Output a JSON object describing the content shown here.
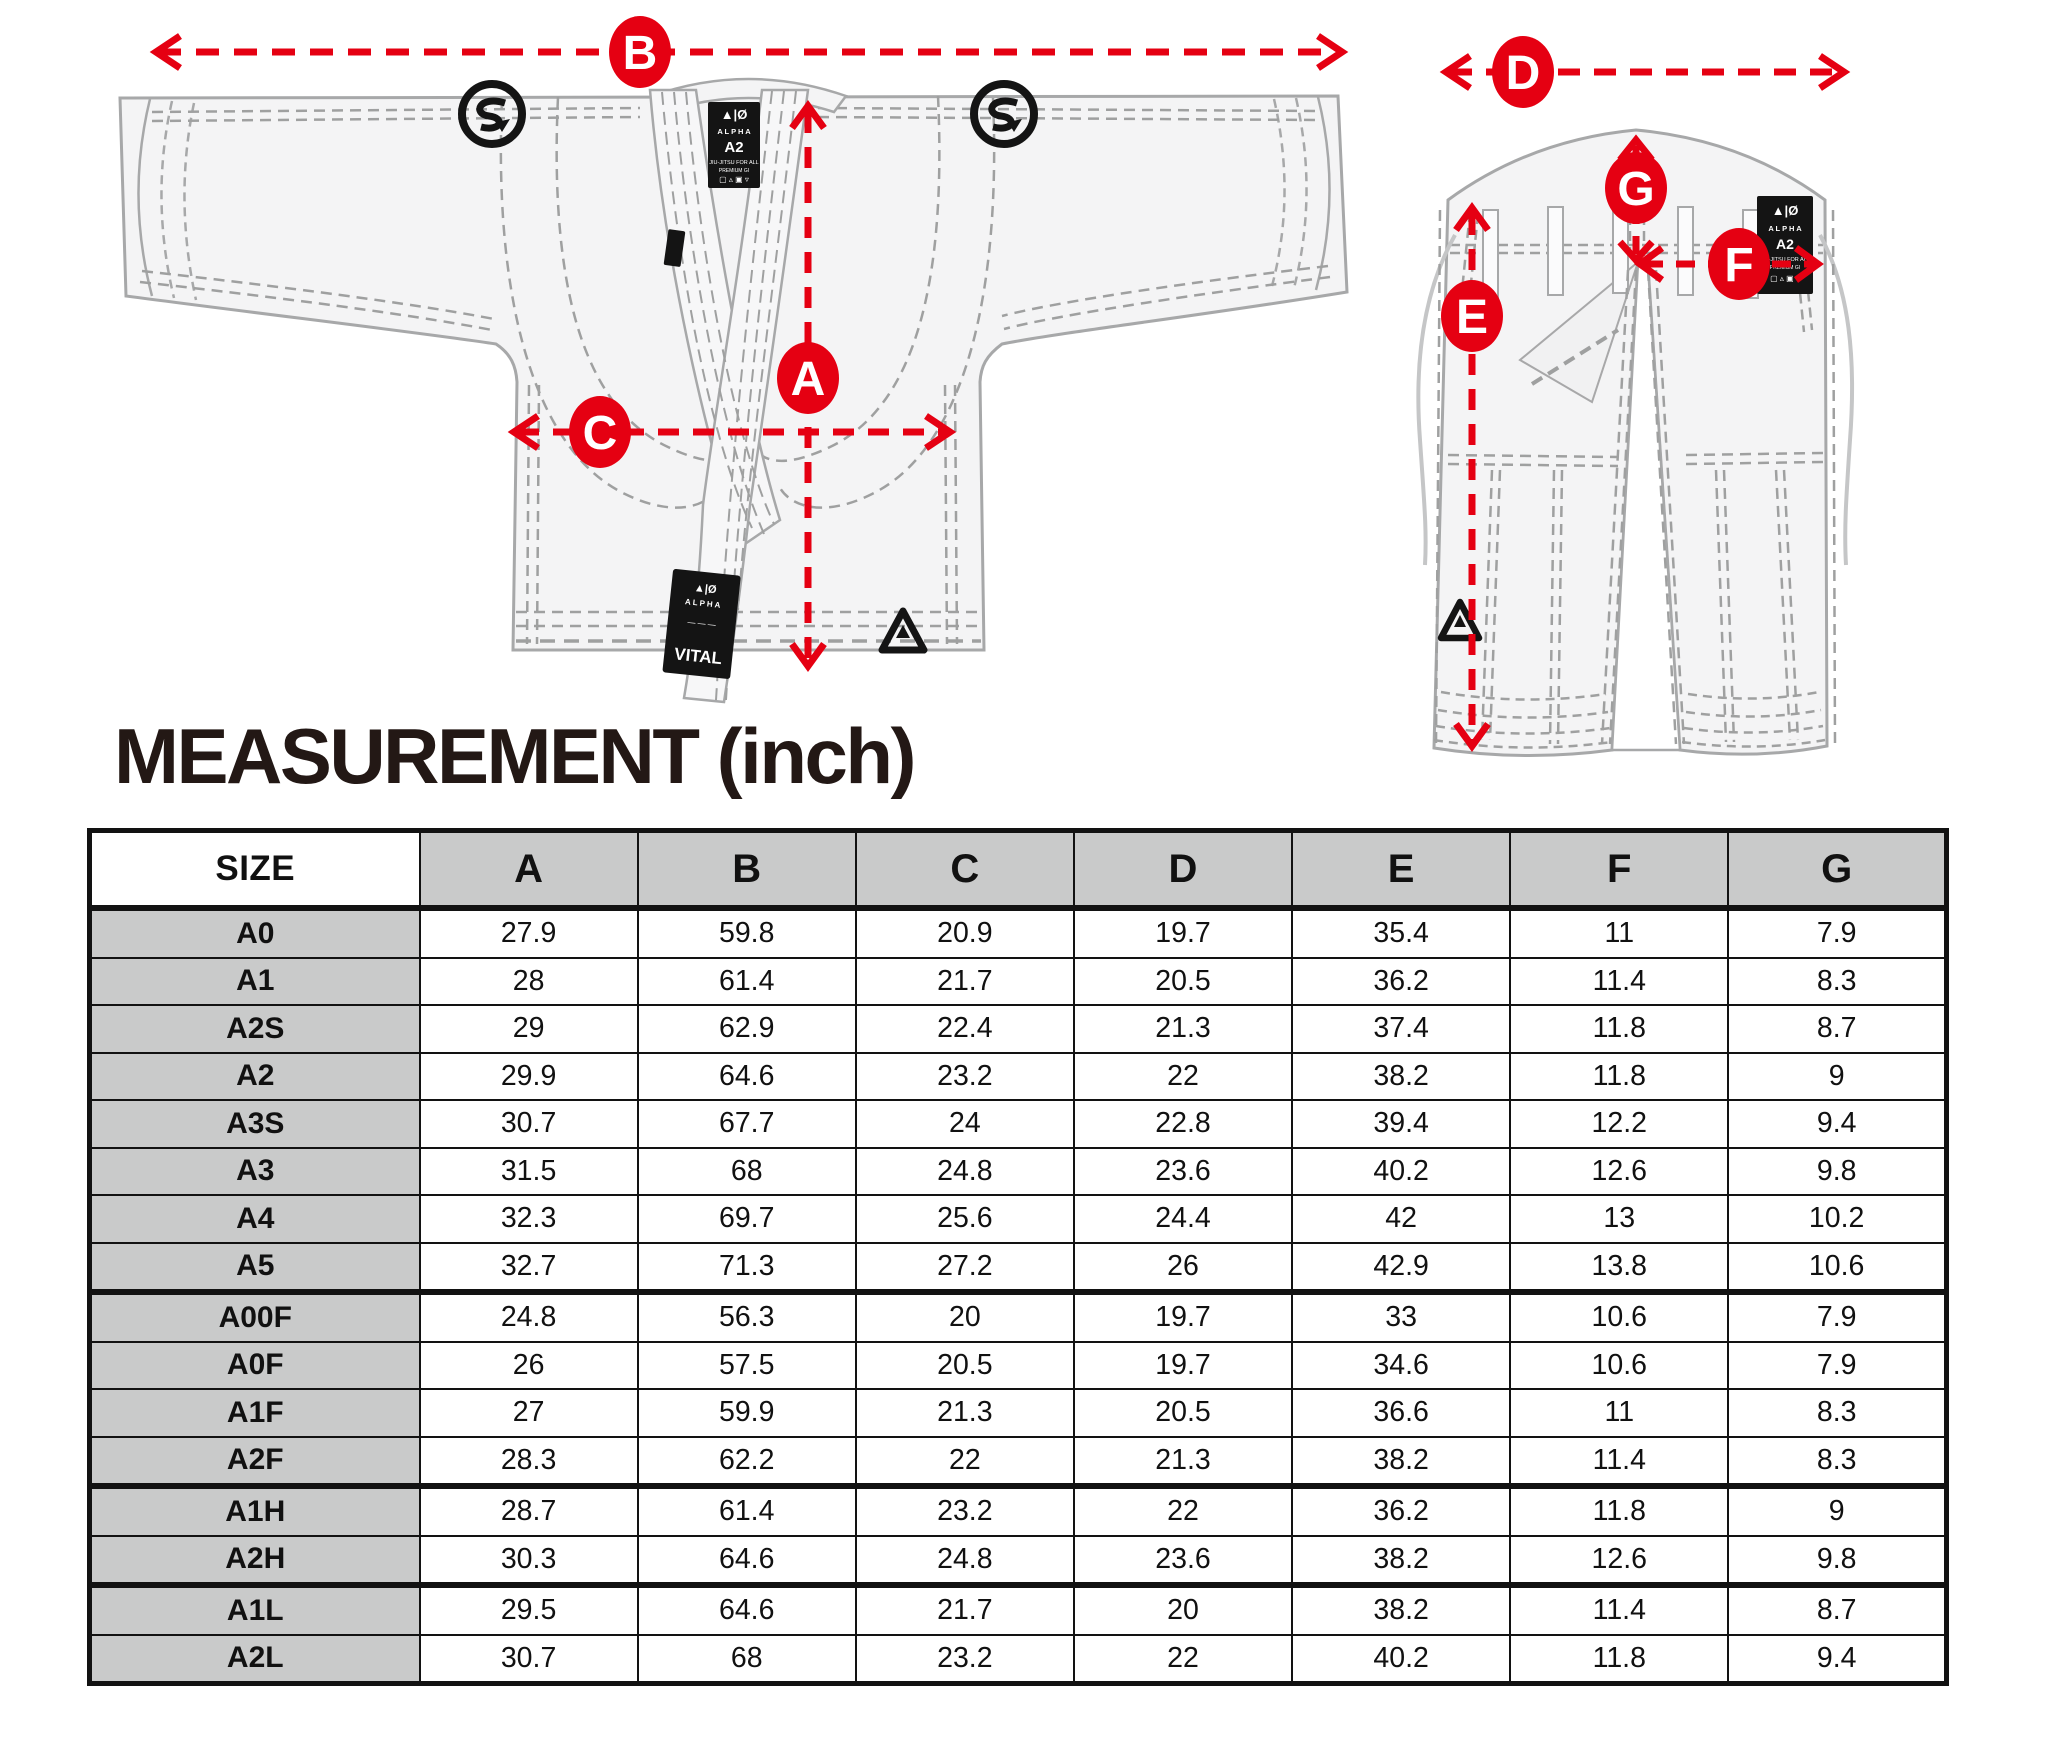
{
  "title": "MEASUREMENT (inch)",
  "markers": {
    "a": "A",
    "b": "B",
    "c": "C",
    "d": "D",
    "e": "E",
    "f": "F",
    "g": "G"
  },
  "jacket": {
    "collar_tag": {
      "logo": "▲|Ø",
      "brand": "A L P H A",
      "size": "A2",
      "line1": "JIU-JITSU FOR ALL",
      "line2": "PREMIUM GI",
      "care": "▢ ▵ ▣ ▿"
    },
    "belt_tag": {
      "logo": "▲|Ø",
      "brand": "ALPHA",
      "name": "VITAL"
    }
  },
  "pants": {
    "hip_tag": {
      "logo": "▲|Ø",
      "brand": "A L P H A",
      "size": "A2",
      "line1": "JIU-JITSU FOR ALL",
      "line2": "PREMIUM GI",
      "care": "▢ ▵ ▣ ▿"
    }
  },
  "table": {
    "columns": [
      "SIZE",
      "A",
      "B",
      "C",
      "D",
      "E",
      "F",
      "G"
    ],
    "rows": [
      {
        "size": "A0",
        "values": [
          "27.9",
          "59.8",
          "20.9",
          "19.7",
          "35.4",
          "11",
          "7.9"
        ]
      },
      {
        "size": "A1",
        "values": [
          "28",
          "61.4",
          "21.7",
          "20.5",
          "36.2",
          "11.4",
          "8.3"
        ]
      },
      {
        "size": "A2S",
        "values": [
          "29",
          "62.9",
          "22.4",
          "21.3",
          "37.4",
          "11.8",
          "8.7"
        ]
      },
      {
        "size": "A2",
        "values": [
          "29.9",
          "64.6",
          "23.2",
          "22",
          "38.2",
          "11.8",
          "9"
        ]
      },
      {
        "size": "A3S",
        "values": [
          "30.7",
          "67.7",
          "24",
          "22.8",
          "39.4",
          "12.2",
          "9.4"
        ]
      },
      {
        "size": "A3",
        "values": [
          "31.5",
          "68",
          "24.8",
          "23.6",
          "40.2",
          "12.6",
          "9.8"
        ]
      },
      {
        "size": "A4",
        "values": [
          "32.3",
          "69.7",
          "25.6",
          "24.4",
          "42",
          "13",
          "10.2"
        ]
      },
      {
        "size": "A5",
        "values": [
          "32.7",
          "71.3",
          "27.2",
          "26",
          "42.9",
          "13.8",
          "10.6"
        ]
      },
      {
        "size": "A00F",
        "values": [
          "24.8",
          "56.3",
          "20",
          "19.7",
          "33",
          "10.6",
          "7.9"
        ]
      },
      {
        "size": "A0F",
        "values": [
          "26",
          "57.5",
          "20.5",
          "19.7",
          "34.6",
          "10.6",
          "7.9"
        ]
      },
      {
        "size": "A1F",
        "values": [
          "27",
          "59.9",
          "21.3",
          "20.5",
          "36.6",
          "11",
          "8.3"
        ]
      },
      {
        "size": "A2F",
        "values": [
          "28.3",
          "62.2",
          "22",
          "21.3",
          "38.2",
          "11.4",
          "8.3"
        ]
      },
      {
        "size": "A1H",
        "values": [
          "28.7",
          "61.4",
          "23.2",
          "22",
          "36.2",
          "11.8",
          "9"
        ]
      },
      {
        "size": "A2H",
        "values": [
          "30.3",
          "64.6",
          "24.8",
          "23.6",
          "38.2",
          "12.6",
          "9.8"
        ]
      },
      {
        "size": "A1L",
        "values": [
          "29.5",
          "64.6",
          "21.7",
          "20",
          "38.2",
          "11.4",
          "8.7"
        ]
      },
      {
        "size": "A2L",
        "values": [
          "30.7",
          "68",
          "23.2",
          "22",
          "40.2",
          "11.8",
          "9.4"
        ]
      }
    ],
    "group_breaks": [
      "A00F",
      "A1H",
      "A1L"
    ]
  },
  "chart_data": {
    "type": "table",
    "title": "MEASUREMENT (inch)",
    "columns": [
      "SIZE",
      "A",
      "B",
      "C",
      "D",
      "E",
      "F",
      "G"
    ],
    "rows": [
      [
        "A0",
        27.9,
        59.8,
        20.9,
        19.7,
        35.4,
        11,
        7.9
      ],
      [
        "A1",
        28,
        61.4,
        21.7,
        20.5,
        36.2,
        11.4,
        8.3
      ],
      [
        "A2S",
        29,
        62.9,
        22.4,
        21.3,
        37.4,
        11.8,
        8.7
      ],
      [
        "A2",
        29.9,
        64.6,
        23.2,
        22,
        38.2,
        11.8,
        9
      ],
      [
        "A3S",
        30.7,
        67.7,
        24,
        22.8,
        39.4,
        12.2,
        9.4
      ],
      [
        "A3",
        31.5,
        68,
        24.8,
        23.6,
        40.2,
        12.6,
        9.8
      ],
      [
        "A4",
        32.3,
        69.7,
        25.6,
        24.4,
        42,
        13,
        10.2
      ],
      [
        "A5",
        32.7,
        71.3,
        27.2,
        26,
        42.9,
        13.8,
        10.6
      ],
      [
        "A00F",
        24.8,
        56.3,
        20,
        19.7,
        33,
        10.6,
        7.9
      ],
      [
        "A0F",
        26,
        57.5,
        20.5,
        19.7,
        34.6,
        10.6,
        7.9
      ],
      [
        "A1F",
        27,
        59.9,
        21.3,
        20.5,
        36.6,
        11,
        8.3
      ],
      [
        "A2F",
        28.3,
        62.2,
        22,
        21.3,
        38.2,
        11.4,
        8.3
      ],
      [
        "A1H",
        28.7,
        61.4,
        23.2,
        22,
        36.2,
        11.8,
        9
      ],
      [
        "A2H",
        30.3,
        64.6,
        24.8,
        23.6,
        38.2,
        12.6,
        9.8
      ],
      [
        "A1L",
        29.5,
        64.6,
        21.7,
        20,
        38.2,
        11.4,
        8.7
      ],
      [
        "A2L",
        30.7,
        68,
        23.2,
        22,
        40.2,
        11.8,
        9.4
      ]
    ]
  },
  "colors": {
    "accent_red": "#e50012",
    "title_color": "#231815",
    "table_header_bg": "#c9caca",
    "row_label_bg": "#c9caca",
    "border_black": "#121212",
    "garment_fill": "#f4f4f5",
    "garment_stroke": "#a7a8a9",
    "stitch_gray": "#9fa0a0"
  }
}
